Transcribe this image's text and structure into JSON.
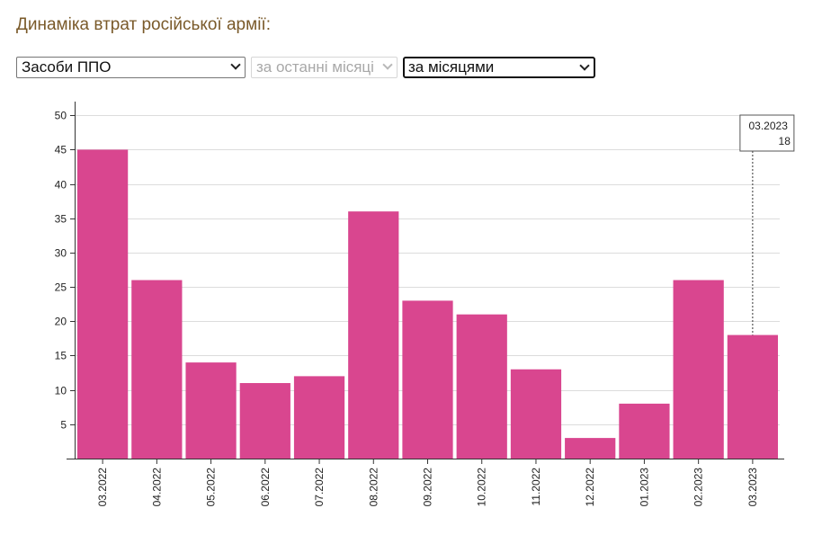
{
  "header": {
    "title": "Динаміка втрат російської армії:"
  },
  "controls": {
    "category_select": {
      "value": "Засоби ППО"
    },
    "period_select": {
      "value": "за останні місяці"
    },
    "grouping_select": {
      "value": "за місяцями"
    }
  },
  "chart_data": {
    "type": "bar",
    "categories": [
      "03.2022",
      "04.2022",
      "05.2022",
      "06.2022",
      "07.2022",
      "08.2022",
      "09.2022",
      "10.2022",
      "11.2022",
      "12.2022",
      "01.2023",
      "02.2023",
      "03.2023"
    ],
    "values": [
      45,
      26,
      14,
      11,
      12,
      36,
      23,
      21,
      13,
      3,
      8,
      26,
      18
    ],
    "ylim": [
      0,
      52
    ],
    "yticks": [
      5,
      10,
      15,
      20,
      25,
      30,
      35,
      40,
      45,
      50
    ],
    "grid": true,
    "bar_color": "#d9468f",
    "tooltip": {
      "label": "03.2023",
      "value": "18"
    }
  }
}
